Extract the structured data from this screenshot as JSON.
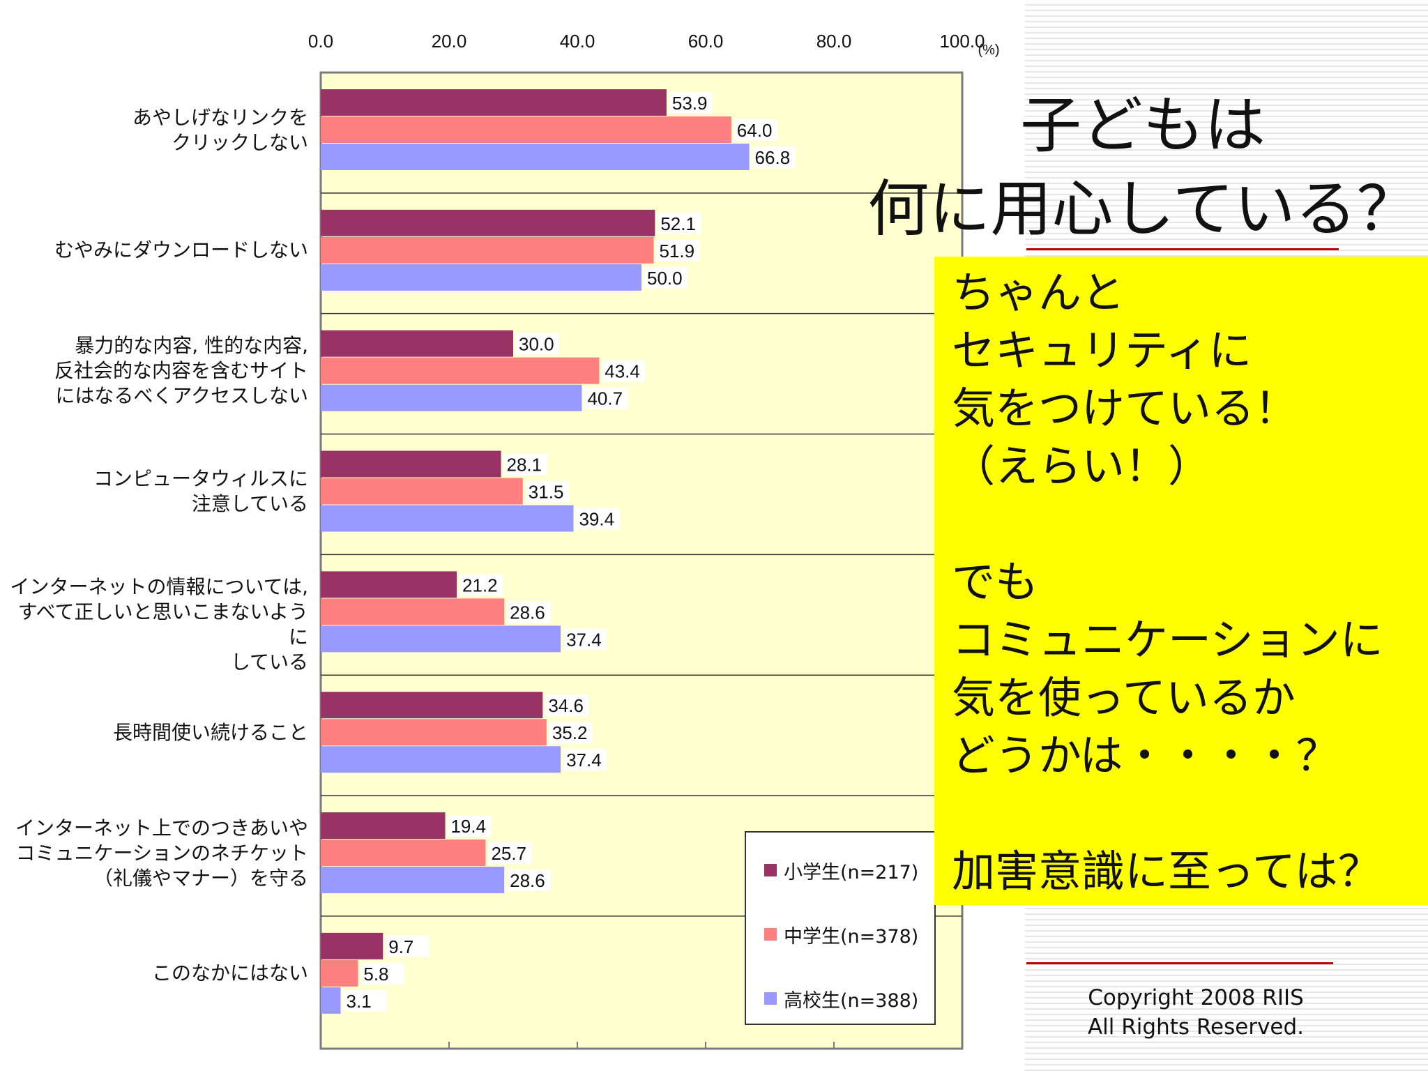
{
  "slide": {
    "title": "子どもは\n何に用心している？",
    "callout_lines": [
      "ちゃんと",
      "セキュリティに",
      "気をつけている！",
      "（えらい！）",
      "",
      "でも",
      "コミュニケーションに",
      "気を使っているか",
      "どうかは・・・・？",
      "",
      "加害意識に至っては？"
    ],
    "callout_bg": "#ffff00",
    "copyright": "Copyright 2008 RIIS\nAll Rights Reserved."
  },
  "chart_data": {
    "type": "bar",
    "orientation": "horizontal",
    "xlim": [
      0,
      100
    ],
    "x_ticks": [
      "0.0",
      "20.0",
      "40.0",
      "60.0",
      "80.0",
      "100.0"
    ],
    "x_unit": "(%)",
    "plot_bg": "#ffffd0",
    "categories": [
      "あやしげなリンクを\nクリックしない",
      "むやみにダウンロードしない",
      "暴力的な内容, 性的な内容,\n反社会的な内容を含むサイト\nにはなるべくアクセスしない",
      "コンピュータウィルスに\n注意している",
      "インターネットの情報については,\nすべて正しいと思いこまないように\nしている",
      "長時間使い続けること",
      "インターネット上でのつきあいや\nコミュニケーションのネチケット\n（礼儀やマナー）を守る",
      "このなかにはない"
    ],
    "series": [
      {
        "name": "小学生(n=217)",
        "color": "#993366",
        "values": [
          53.9,
          52.1,
          30.0,
          28.1,
          21.2,
          34.6,
          19.4,
          9.7
        ]
      },
      {
        "name": "中学生(n=378)",
        "color": "#ff8080",
        "values": [
          64.0,
          51.9,
          43.4,
          31.5,
          28.6,
          35.2,
          25.7,
          5.8
        ]
      },
      {
        "name": "高校生(n=388)",
        "color": "#9999ff",
        "values": [
          66.8,
          50.0,
          40.7,
          39.4,
          37.4,
          37.4,
          28.6,
          3.1
        ]
      }
    ],
    "legend_position": "bottom-right"
  }
}
